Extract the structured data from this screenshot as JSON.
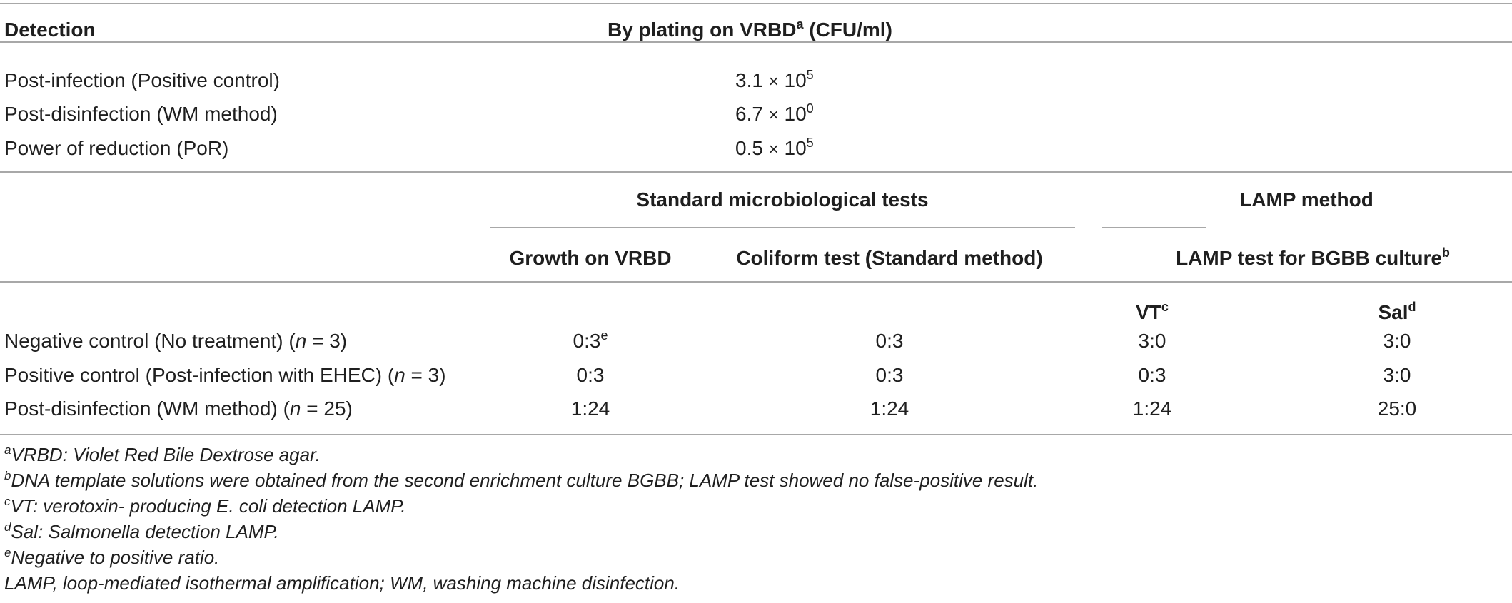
{
  "top_table": {
    "headers": {
      "detection": "Detection",
      "plating_main": "By plating on VRBD",
      "plating_sup": "a",
      "plating_unit": "(CFU/ml)"
    },
    "rows": [
      {
        "label": "Post-infection (Positive control)",
        "mantissa": "3.1",
        "times": "×",
        "base": "10",
        "exp": "5"
      },
      {
        "label": "Post-disinfection (WM method)",
        "mantissa": "6.7",
        "times": "×",
        "base": "10",
        "exp": "0"
      },
      {
        "label": "Power of reduction (PoR)",
        "mantissa": "0.5",
        "times": "×",
        "base": "10",
        "exp": "5"
      }
    ]
  },
  "bottom_table": {
    "group_headers": {
      "standard": "Standard microbiological tests",
      "lamp": "LAMP method"
    },
    "sub_headers": {
      "growth": "Growth on VRBD",
      "coliform": "Coliform test (Standard method)",
      "lamp_test": "LAMP test for BGBB culture",
      "lamp_test_sup": "b"
    },
    "lamp_cols": {
      "vt": "VT",
      "vt_sup": "c",
      "sal": "Sal",
      "sal_sup": "d"
    },
    "rows": [
      {
        "label_pre": "Negative control (No treatment) (",
        "n": "n",
        "label_post": " = 3)",
        "growth": "0:3",
        "growth_sup": "e",
        "coliform": "0:3",
        "vt": "3:0",
        "sal": "3:0"
      },
      {
        "label_pre": "Positive control (Post-infection with EHEC) (",
        "n": "n",
        "label_post": " = 3)",
        "growth": "0:3",
        "growth_sup": "",
        "coliform": "0:3",
        "vt": "0:3",
        "sal": "3:0"
      },
      {
        "label_pre": "Post-disinfection (WM method) (",
        "n": "n",
        "label_post": " = 25)",
        "growth": "1:24",
        "growth_sup": "",
        "coliform": "1:24",
        "vt": "1:24",
        "sal": "25:0"
      }
    ]
  },
  "footnotes": [
    {
      "mark": "a",
      "text": "VRBD: Violet Red Bile Dextrose agar."
    },
    {
      "mark": "b",
      "text": "DNA template solutions were obtained from the second enrichment culture BGBB; LAMP test showed no false-positive result."
    },
    {
      "mark": "c",
      "text": "VT: verotoxin- producing E. coli detection LAMP."
    },
    {
      "mark": "d",
      "text": "Sal: Salmonella detection LAMP."
    },
    {
      "mark": "e",
      "text": "Negative to positive ratio."
    },
    {
      "mark": "",
      "text": "LAMP, loop-mediated isothermal amplification; WM, washing machine disinfection."
    }
  ]
}
